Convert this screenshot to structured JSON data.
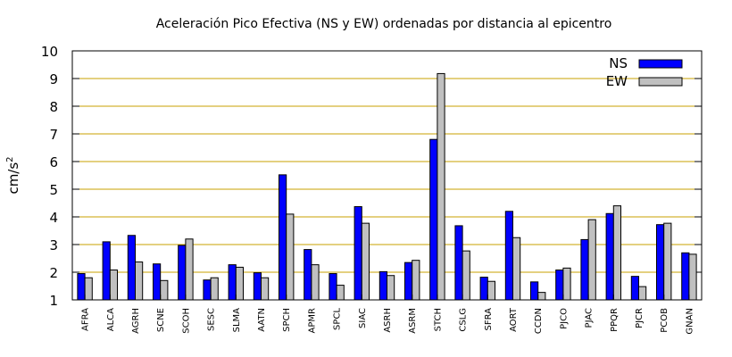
{
  "chart_data": {
    "type": "bar",
    "title": "Aceleración Pico Efectiva (NS y EW) ordenadas por distancia al epicentro",
    "ylabel": "cm/s",
    "ylabel_sup": "2",
    "xlabel": "",
    "ylim": [
      1,
      10
    ],
    "yticks": [
      1,
      2,
      3,
      4,
      5,
      6,
      7,
      8,
      9,
      10
    ],
    "grid": "horizontal",
    "legend_position": "top-right",
    "categories": [
      "AFRA",
      "ALCA",
      "AGRH",
      "SCNE",
      "SCOH",
      "SESC",
      "SLMA",
      "AATN",
      "SPCH",
      "APMR",
      "SPCL",
      "SIAC",
      "ASRH",
      "ASRM",
      "STCH",
      "CSLG",
      "SFRA",
      "AORT",
      "CCDN",
      "PJCO",
      "PJAC",
      "PPQR",
      "PJCR",
      "PCOB",
      "GNAN"
    ],
    "series": [
      {
        "name": "NS",
        "color": "#0000ff",
        "values": [
          1.95,
          3.1,
          3.33,
          2.3,
          2.97,
          1.72,
          2.27,
          1.98,
          5.52,
          2.82,
          1.95,
          4.37,
          2.02,
          2.35,
          6.8,
          3.68,
          1.82,
          4.2,
          1.65,
          2.08,
          3.18,
          4.12,
          1.85,
          3.72,
          2.7
        ]
      },
      {
        "name": "EW",
        "color": "#c0c0c0",
        "values": [
          1.8,
          2.08,
          2.37,
          1.7,
          3.2,
          1.8,
          2.18,
          1.8,
          4.1,
          2.27,
          1.53,
          3.77,
          1.88,
          2.43,
          9.18,
          2.77,
          1.67,
          3.25,
          1.27,
          2.15,
          3.9,
          4.4,
          1.48,
          3.77,
          2.65
        ]
      }
    ],
    "colors": {
      "grid": "#c8a000",
      "axis": "#000000"
    }
  }
}
